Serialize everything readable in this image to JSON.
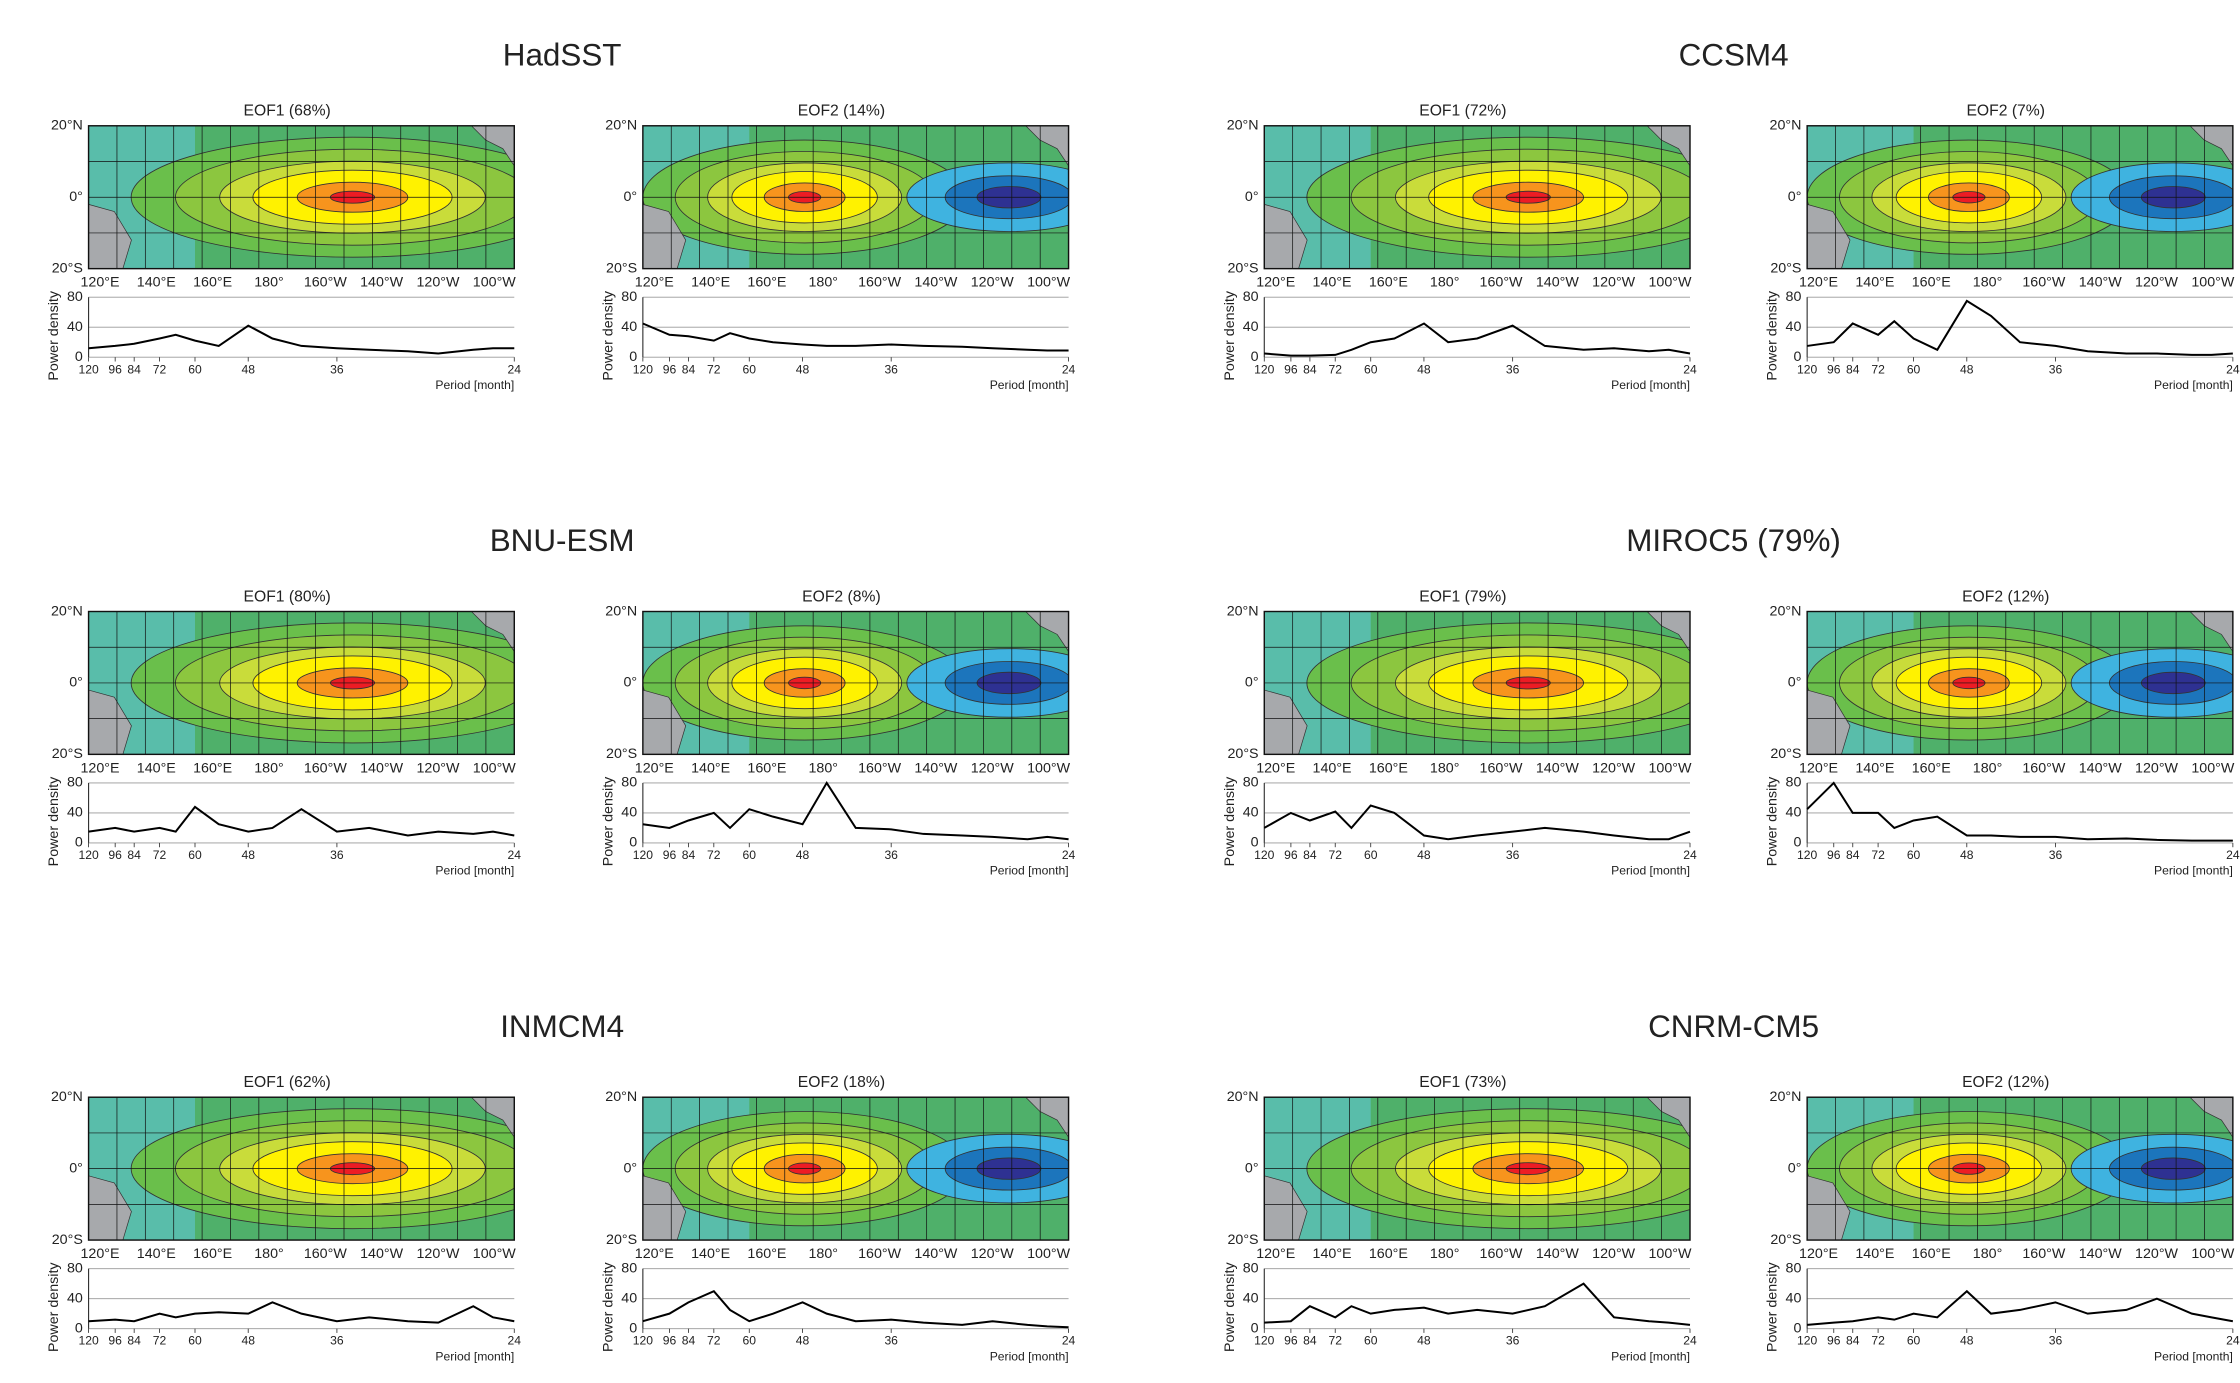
{
  "panels": [
    "HadSST",
    "CCSM4",
    "BNU-ESM",
    "MIROC5 (79%)",
    "INMCM4",
    "CNRM-CM5"
  ],
  "map": {
    "lat_labels": [
      "20°N",
      "0°",
      "20°S"
    ],
    "lon_labels": [
      "120°E",
      "140°E",
      "160°E",
      "180°",
      "160°W",
      "140°W",
      "120°W",
      "100°W"
    ]
  },
  "chart_data": [
    {
      "type": "line",
      "title": "EOF1 (68%)",
      "xlabel": "Period [month]",
      "ylabel": "Power density",
      "color": "#000000",
      "grid": true,
      "xscale": "reciprocal",
      "xlim": [
        120,
        24
      ],
      "xticks": [
        120,
        96,
        84,
        72,
        60,
        48,
        36,
        24
      ],
      "ylim": [
        0,
        80
      ],
      "yticks": [
        0,
        40,
        80
      ],
      "x": [
        120,
        96,
        84,
        72,
        66,
        60,
        54,
        48,
        44,
        40,
        36,
        33,
        30,
        28,
        26,
        25,
        24
      ],
      "values": [
        12,
        15,
        18,
        25,
        30,
        22,
        15,
        42,
        25,
        15,
        12,
        10,
        8,
        5,
        10,
        12,
        12
      ]
    },
    {
      "type": "line",
      "title": "EOF2 (14%)",
      "xlabel": "Period [month]",
      "ylabel": "Power density",
      "color": "#000000",
      "grid": true,
      "xscale": "reciprocal",
      "xlim": [
        120,
        24
      ],
      "xticks": [
        120,
        96,
        84,
        72,
        60,
        48,
        36,
        24
      ],
      "ylim": [
        0,
        80
      ],
      "yticks": [
        0,
        40,
        80
      ],
      "x": [
        120,
        96,
        84,
        72,
        66,
        60,
        54,
        48,
        44,
        40,
        36,
        33,
        30,
        28,
        26,
        25,
        24
      ],
      "values": [
        45,
        30,
        28,
        22,
        32,
        25,
        20,
        17,
        15,
        15,
        17,
        15,
        14,
        12,
        10,
        9,
        9
      ]
    },
    {
      "type": "line",
      "title": "EOF1 (72%)",
      "xlabel": "Period [month]",
      "ylabel": "Power density",
      "color": "#000000",
      "grid": true,
      "xscale": "reciprocal",
      "xlim": [
        120,
        24
      ],
      "xticks": [
        120,
        96,
        84,
        72,
        60,
        48,
        36,
        24
      ],
      "ylim": [
        0,
        80
      ],
      "yticks": [
        0,
        40,
        80
      ],
      "x": [
        120,
        96,
        84,
        72,
        66,
        60,
        54,
        48,
        44,
        40,
        36,
        33,
        30,
        28,
        26,
        25,
        24
      ],
      "values": [
        5,
        2,
        2,
        3,
        10,
        20,
        25,
        45,
        20,
        25,
        42,
        15,
        10,
        12,
        8,
        10,
        5
      ]
    },
    {
      "type": "line",
      "title": "EOF2 (7%)",
      "xlabel": "Period [month]",
      "ylabel": "Power density",
      "color": "#000000",
      "grid": true,
      "xscale": "reciprocal",
      "xlim": [
        120,
        24
      ],
      "xticks": [
        120,
        96,
        84,
        72,
        60,
        48,
        36,
        24
      ],
      "ylim": [
        0,
        80
      ],
      "yticks": [
        0,
        40,
        80
      ],
      "x": [
        120,
        96,
        84,
        72,
        66,
        60,
        54,
        48,
        44,
        40,
        36,
        33,
        30,
        28,
        26,
        25,
        24
      ],
      "values": [
        15,
        20,
        45,
        30,
        48,
        25,
        10,
        75,
        55,
        20,
        15,
        8,
        5,
        5,
        3,
        3,
        5
      ]
    },
    {
      "type": "line",
      "title": "EOF1 (80%)",
      "xlabel": "Period [month]",
      "ylabel": "Power density",
      "color": "#000000",
      "grid": true,
      "xscale": "reciprocal",
      "xlim": [
        120,
        24
      ],
      "xticks": [
        120,
        96,
        84,
        72,
        60,
        48,
        36,
        24
      ],
      "ylim": [
        0,
        80
      ],
      "yticks": [
        0,
        40,
        80
      ],
      "x": [
        120,
        96,
        84,
        72,
        66,
        60,
        54,
        48,
        44,
        40,
        36,
        33,
        30,
        28,
        26,
        25,
        24
      ],
      "values": [
        15,
        20,
        15,
        20,
        15,
        48,
        25,
        15,
        20,
        45,
        15,
        20,
        10,
        15,
        12,
        15,
        10
      ]
    },
    {
      "type": "line",
      "title": "EOF2 (8%)",
      "xlabel": "Period [month]",
      "ylabel": "Power density",
      "color": "#000000",
      "grid": true,
      "xscale": "reciprocal",
      "xlim": [
        120,
        24
      ],
      "xticks": [
        120,
        96,
        84,
        72,
        60,
        48,
        36,
        24
      ],
      "ylim": [
        0,
        80
      ],
      "yticks": [
        0,
        40,
        80
      ],
      "x": [
        120,
        96,
        84,
        72,
        66,
        60,
        54,
        48,
        44,
        40,
        36,
        33,
        30,
        28,
        26,
        25,
        24
      ],
      "values": [
        25,
        20,
        30,
        40,
        20,
        45,
        35,
        25,
        80,
        20,
        18,
        12,
        10,
        8,
        5,
        8,
        5
      ]
    },
    {
      "type": "line",
      "title": "EOF1 (79%)",
      "xlabel": "Period [month]",
      "ylabel": "Power density",
      "color": "#000000",
      "grid": true,
      "xscale": "reciprocal",
      "xlim": [
        120,
        24
      ],
      "xticks": [
        120,
        96,
        84,
        72,
        60,
        48,
        36,
        24
      ],
      "ylim": [
        0,
        80
      ],
      "yticks": [
        0,
        40,
        80
      ],
      "x": [
        120,
        96,
        84,
        72,
        66,
        60,
        54,
        48,
        44,
        40,
        36,
        33,
        30,
        28,
        26,
        25,
        24
      ],
      "values": [
        20,
        40,
        30,
        42,
        20,
        50,
        40,
        10,
        5,
        10,
        15,
        20,
        15,
        10,
        5,
        5,
        15
      ]
    },
    {
      "type": "line",
      "title": "EOF2 (12%)",
      "xlabel": "Period [month]",
      "ylabel": "Power density",
      "color": "#000000",
      "grid": true,
      "xscale": "reciprocal",
      "xlim": [
        120,
        24
      ],
      "xticks": [
        120,
        96,
        84,
        72,
        60,
        48,
        36,
        24
      ],
      "ylim": [
        0,
        80
      ],
      "yticks": [
        0,
        40,
        80
      ],
      "x": [
        120,
        96,
        84,
        72,
        66,
        60,
        54,
        48,
        44,
        40,
        36,
        33,
        30,
        28,
        26,
        25,
        24
      ],
      "values": [
        45,
        80,
        40,
        40,
        20,
        30,
        35,
        10,
        10,
        8,
        8,
        5,
        6,
        4,
        3,
        3,
        3
      ]
    },
    {
      "type": "line",
      "title": "EOF1 (62%)",
      "xlabel": "Period [month]",
      "ylabel": "Power density",
      "color": "#000000",
      "grid": true,
      "xscale": "reciprocal",
      "xlim": [
        120,
        24
      ],
      "xticks": [
        120,
        96,
        84,
        72,
        60,
        48,
        36,
        24
      ],
      "ylim": [
        0,
        80
      ],
      "yticks": [
        0,
        40,
        80
      ],
      "x": [
        120,
        96,
        84,
        72,
        66,
        60,
        54,
        48,
        44,
        40,
        36,
        33,
        30,
        28,
        26,
        25,
        24
      ],
      "values": [
        10,
        12,
        10,
        20,
        15,
        20,
        22,
        20,
        35,
        20,
        10,
        15,
        10,
        8,
        30,
        15,
        10
      ]
    },
    {
      "type": "line",
      "title": "EOF2 (18%)",
      "xlabel": "Period [month]",
      "ylabel": "Power density",
      "color": "#000000",
      "grid": true,
      "xscale": "reciprocal",
      "xlim": [
        120,
        24
      ],
      "xticks": [
        120,
        96,
        84,
        72,
        60,
        48,
        36,
        24
      ],
      "ylim": [
        0,
        80
      ],
      "yticks": [
        0,
        40,
        80
      ],
      "x": [
        120,
        96,
        84,
        72,
        66,
        60,
        54,
        48,
        44,
        40,
        36,
        33,
        30,
        28,
        26,
        25,
        24
      ],
      "values": [
        10,
        20,
        35,
        50,
        25,
        10,
        20,
        35,
        20,
        10,
        12,
        8,
        5,
        10,
        5,
        3,
        2
      ]
    },
    {
      "type": "line",
      "title": "EOF1 (73%)",
      "xlabel": "Period [month]",
      "ylabel": "Power density",
      "color": "#000000",
      "grid": true,
      "xscale": "reciprocal",
      "xlim": [
        120,
        24
      ],
      "xticks": [
        120,
        96,
        84,
        72,
        60,
        48,
        36,
        24
      ],
      "ylim": [
        0,
        80
      ],
      "yticks": [
        0,
        40,
        80
      ],
      "x": [
        120,
        96,
        84,
        72,
        66,
        60,
        54,
        48,
        44,
        40,
        36,
        33,
        30,
        28,
        26,
        25,
        24
      ],
      "values": [
        8,
        10,
        30,
        15,
        30,
        20,
        25,
        28,
        20,
        25,
        20,
        30,
        60,
        15,
        10,
        8,
        5
      ]
    },
    {
      "type": "line",
      "title": "EOF2 (12%)",
      "xlabel": "Period [month]",
      "ylabel": "Power density",
      "color": "#000000",
      "grid": true,
      "xscale": "reciprocal",
      "xlim": [
        120,
        24
      ],
      "xticks": [
        120,
        96,
        84,
        72,
        60,
        48,
        36,
        24
      ],
      "ylim": [
        0,
        80
      ],
      "yticks": [
        0,
        40,
        80
      ],
      "x": [
        120,
        96,
        84,
        72,
        66,
        60,
        54,
        48,
        44,
        40,
        36,
        33,
        30,
        28,
        26,
        25,
        24
      ],
      "values": [
        5,
        8,
        10,
        15,
        12,
        20,
        15,
        50,
        20,
        25,
        35,
        20,
        25,
        40,
        20,
        15,
        10
      ]
    }
  ]
}
